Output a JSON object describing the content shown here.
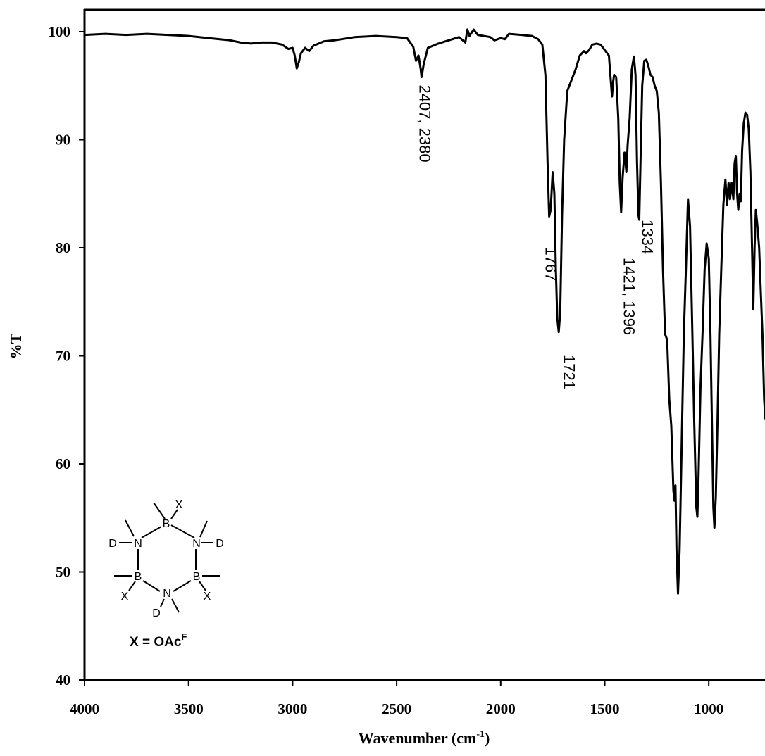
{
  "chart_data": {
    "type": "line",
    "xlabel": "Wavenumber (cm",
    "xlabel_sup": "-1",
    "xlabel_close": ")",
    "ylabel": "%T",
    "xlim": [
      4000,
      720
    ],
    "ylim": [
      40,
      102
    ],
    "x_reversed": true,
    "grid": false,
    "x_ticks": [
      4000,
      3500,
      3000,
      2500,
      2000,
      1500,
      1000
    ],
    "y_ticks": [
      40,
      50,
      60,
      70,
      80,
      90,
      100
    ],
    "series": [
      {
        "points": [
          [
            4000,
            99.7
          ],
          [
            3900,
            99.8
          ],
          [
            3800,
            99.7
          ],
          [
            3700,
            99.8
          ],
          [
            3600,
            99.7
          ],
          [
            3500,
            99.6
          ],
          [
            3400,
            99.4
          ],
          [
            3300,
            99.2
          ],
          [
            3250,
            99.0
          ],
          [
            3200,
            98.9
          ],
          [
            3150,
            99.0
          ],
          [
            3100,
            99.0
          ],
          [
            3050,
            98.8
          ],
          [
            3020,
            98.4
          ],
          [
            3000,
            98.5
          ],
          [
            2990,
            97.8
          ],
          [
            2980,
            96.6
          ],
          [
            2970,
            97.2
          ],
          [
            2960,
            98.0
          ],
          [
            2940,
            98.5
          ],
          [
            2920,
            98.2
          ],
          [
            2900,
            98.7
          ],
          [
            2850,
            99.1
          ],
          [
            2800,
            99.2
          ],
          [
            2700,
            99.5
          ],
          [
            2600,
            99.6
          ],
          [
            2500,
            99.5
          ],
          [
            2450,
            99.4
          ],
          [
            2420,
            98.6
          ],
          [
            2407,
            97.3
          ],
          [
            2395,
            97.8
          ],
          [
            2385,
            96.6
          ],
          [
            2380,
            95.8
          ],
          [
            2370,
            97.0
          ],
          [
            2350,
            98.5
          ],
          [
            2300,
            98.9
          ],
          [
            2250,
            99.2
          ],
          [
            2200,
            99.5
          ],
          [
            2170,
            99.0
          ],
          [
            2160,
            100.2
          ],
          [
            2150,
            99.6
          ],
          [
            2130,
            100.2
          ],
          [
            2110,
            99.7
          ],
          [
            2050,
            99.5
          ],
          [
            2030,
            99.2
          ],
          [
            2000,
            99.4
          ],
          [
            1980,
            99.3
          ],
          [
            1960,
            99.8
          ],
          [
            1900,
            99.7
          ],
          [
            1850,
            99.6
          ],
          [
            1820,
            99.3
          ],
          [
            1800,
            98.8
          ],
          [
            1785,
            96.0
          ],
          [
            1775,
            88.0
          ],
          [
            1767,
            82.9
          ],
          [
            1760,
            83.5
          ],
          [
            1750,
            87.0
          ],
          [
            1742,
            85.0
          ],
          [
            1735,
            78.0
          ],
          [
            1728,
            73.5
          ],
          [
            1721,
            72.2
          ],
          [
            1714,
            74.0
          ],
          [
            1705,
            83.0
          ],
          [
            1695,
            90.0
          ],
          [
            1680,
            94.5
          ],
          [
            1660,
            95.5
          ],
          [
            1640,
            96.5
          ],
          [
            1620,
            97.8
          ],
          [
            1600,
            98.2
          ],
          [
            1590,
            98.0
          ],
          [
            1575,
            98.3
          ],
          [
            1560,
            98.8
          ],
          [
            1540,
            98.9
          ],
          [
            1520,
            98.8
          ],
          [
            1500,
            98.3
          ],
          [
            1480,
            97.8
          ],
          [
            1470,
            95.2
          ],
          [
            1465,
            94.0
          ],
          [
            1460,
            95.3
          ],
          [
            1455,
            96.0
          ],
          [
            1445,
            95.8
          ],
          [
            1435,
            92.0
          ],
          [
            1428,
            86.0
          ],
          [
            1421,
            83.3
          ],
          [
            1414,
            86.5
          ],
          [
            1405,
            88.8
          ],
          [
            1398,
            87.5
          ],
          [
            1396,
            87.0
          ],
          [
            1390,
            89.5
          ],
          [
            1380,
            92.0
          ],
          [
            1370,
            96.5
          ],
          [
            1360,
            97.7
          ],
          [
            1352,
            96.0
          ],
          [
            1345,
            88.0
          ],
          [
            1338,
            83.0
          ],
          [
            1334,
            82.6
          ],
          [
            1328,
            88.0
          ],
          [
            1320,
            95.0
          ],
          [
            1310,
            97.3
          ],
          [
            1300,
            97.4
          ],
          [
            1290,
            96.8
          ],
          [
            1280,
            96.0
          ],
          [
            1270,
            95.8
          ],
          [
            1260,
            95.0
          ],
          [
            1250,
            94.5
          ],
          [
            1240,
            92.5
          ],
          [
            1230,
            86.0
          ],
          [
            1220,
            78.0
          ],
          [
            1210,
            72.0
          ],
          [
            1200,
            71.5
          ],
          [
            1190,
            66.0
          ],
          [
            1180,
            63.5
          ],
          [
            1170,
            57.5
          ],
          [
            1165,
            56.6
          ],
          [
            1160,
            58.0
          ],
          [
            1155,
            52.0
          ],
          [
            1148,
            48.0
          ],
          [
            1140,
            52.0
          ],
          [
            1130,
            62.0
          ],
          [
            1120,
            72.0
          ],
          [
            1110,
            78.0
          ],
          [
            1100,
            84.5
          ],
          [
            1090,
            82.0
          ],
          [
            1080,
            73.0
          ],
          [
            1070,
            64.0
          ],
          [
            1060,
            56.0
          ],
          [
            1055,
            55.1
          ],
          [
            1050,
            58.0
          ],
          [
            1040,
            67.0
          ],
          [
            1030,
            72.0
          ],
          [
            1020,
            78.0
          ],
          [
            1010,
            80.4
          ],
          [
            1000,
            79.0
          ],
          [
            992,
            72.0
          ],
          [
            985,
            64.0
          ],
          [
            978,
            56.0
          ],
          [
            973,
            54.1
          ],
          [
            966,
            57.0
          ],
          [
            958,
            64.0
          ],
          [
            950,
            72.0
          ],
          [
            940,
            78.0
          ],
          [
            930,
            84.0
          ],
          [
            920,
            86.3
          ],
          [
            912,
            84.0
          ],
          [
            905,
            86.0
          ],
          [
            898,
            84.5
          ],
          [
            890,
            86.0
          ],
          [
            882,
            84.5
          ],
          [
            876,
            87.8
          ],
          [
            870,
            88.5
          ],
          [
            864,
            85.0
          ],
          [
            858,
            83.5
          ],
          [
            852,
            85.0
          ],
          [
            846,
            84.3
          ],
          [
            840,
            89.0
          ],
          [
            832,
            91.5
          ],
          [
            824,
            92.5
          ],
          [
            816,
            92.3
          ],
          [
            808,
            91.0
          ],
          [
            800,
            87.0
          ],
          [
            792,
            80.0
          ],
          [
            786,
            74.3
          ],
          [
            780,
            80.0
          ],
          [
            774,
            83.5
          ],
          [
            766,
            82.0
          ],
          [
            758,
            80.0
          ],
          [
            750,
            76.0
          ],
          [
            742,
            72.0
          ],
          [
            734,
            66.0
          ],
          [
            728,
            64.2
          ],
          [
            724,
            66.5
          ],
          [
            720,
            69.0
          ]
        ]
      }
    ],
    "annotations": [
      {
        "text": "2407, 2380",
        "x": 2390,
        "y": 91.5
      },
      {
        "text": "1767",
        "x": 1785,
        "y": 78.5
      },
      {
        "text": "1721",
        "x": 1697,
        "y": 68.5
      },
      {
        "text": "1421, 1396",
        "x": 1408,
        "y": 75.5
      },
      {
        "text": "1334",
        "x": 1320,
        "y": 81.0
      }
    ]
  },
  "inset": {
    "atoms": [
      "B",
      "N",
      "B",
      "N",
      "B",
      "N"
    ],
    "substituents": [
      "X",
      "D",
      "D",
      "X",
      "D",
      "X"
    ],
    "formula_prefix": "X = OAc",
    "formula_sup": "F"
  }
}
